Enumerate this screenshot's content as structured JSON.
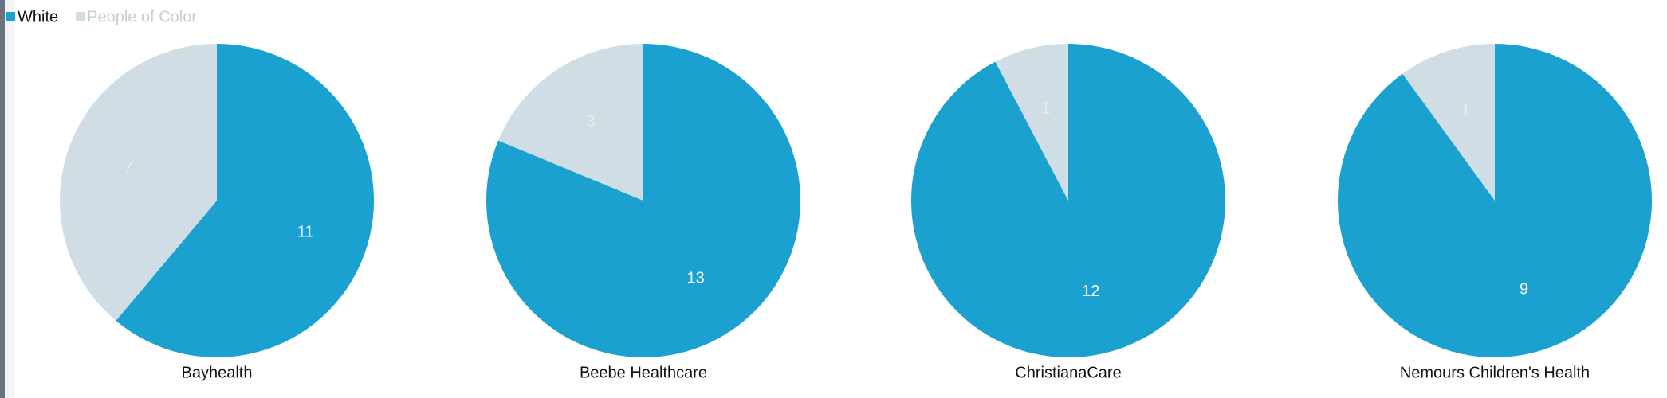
{
  "chart_data": [
    {
      "type": "pie",
      "title": "Bayhealth",
      "categories": [
        "White",
        "People of Color"
      ],
      "values": [
        11,
        7
      ],
      "colors": [
        "#1aa1cf",
        "#d1dde5"
      ]
    },
    {
      "type": "pie",
      "title": "Beebe Healthcare",
      "categories": [
        "White",
        "People of Color"
      ],
      "values": [
        13,
        3
      ],
      "colors": [
        "#1aa1cf",
        "#d1dde5"
      ]
    },
    {
      "type": "pie",
      "title": "ChristianaCare",
      "categories": [
        "White",
        "People of Color"
      ],
      "values": [
        12,
        1
      ],
      "colors": [
        "#1aa1cf",
        "#d1dde5"
      ]
    },
    {
      "type": "pie",
      "title": "Nemours Children's Health",
      "categories": [
        "White",
        "People of Color"
      ],
      "values": [
        9,
        1
      ],
      "colors": [
        "#1aa1cf",
        "#d1dde5"
      ]
    }
  ]
}
